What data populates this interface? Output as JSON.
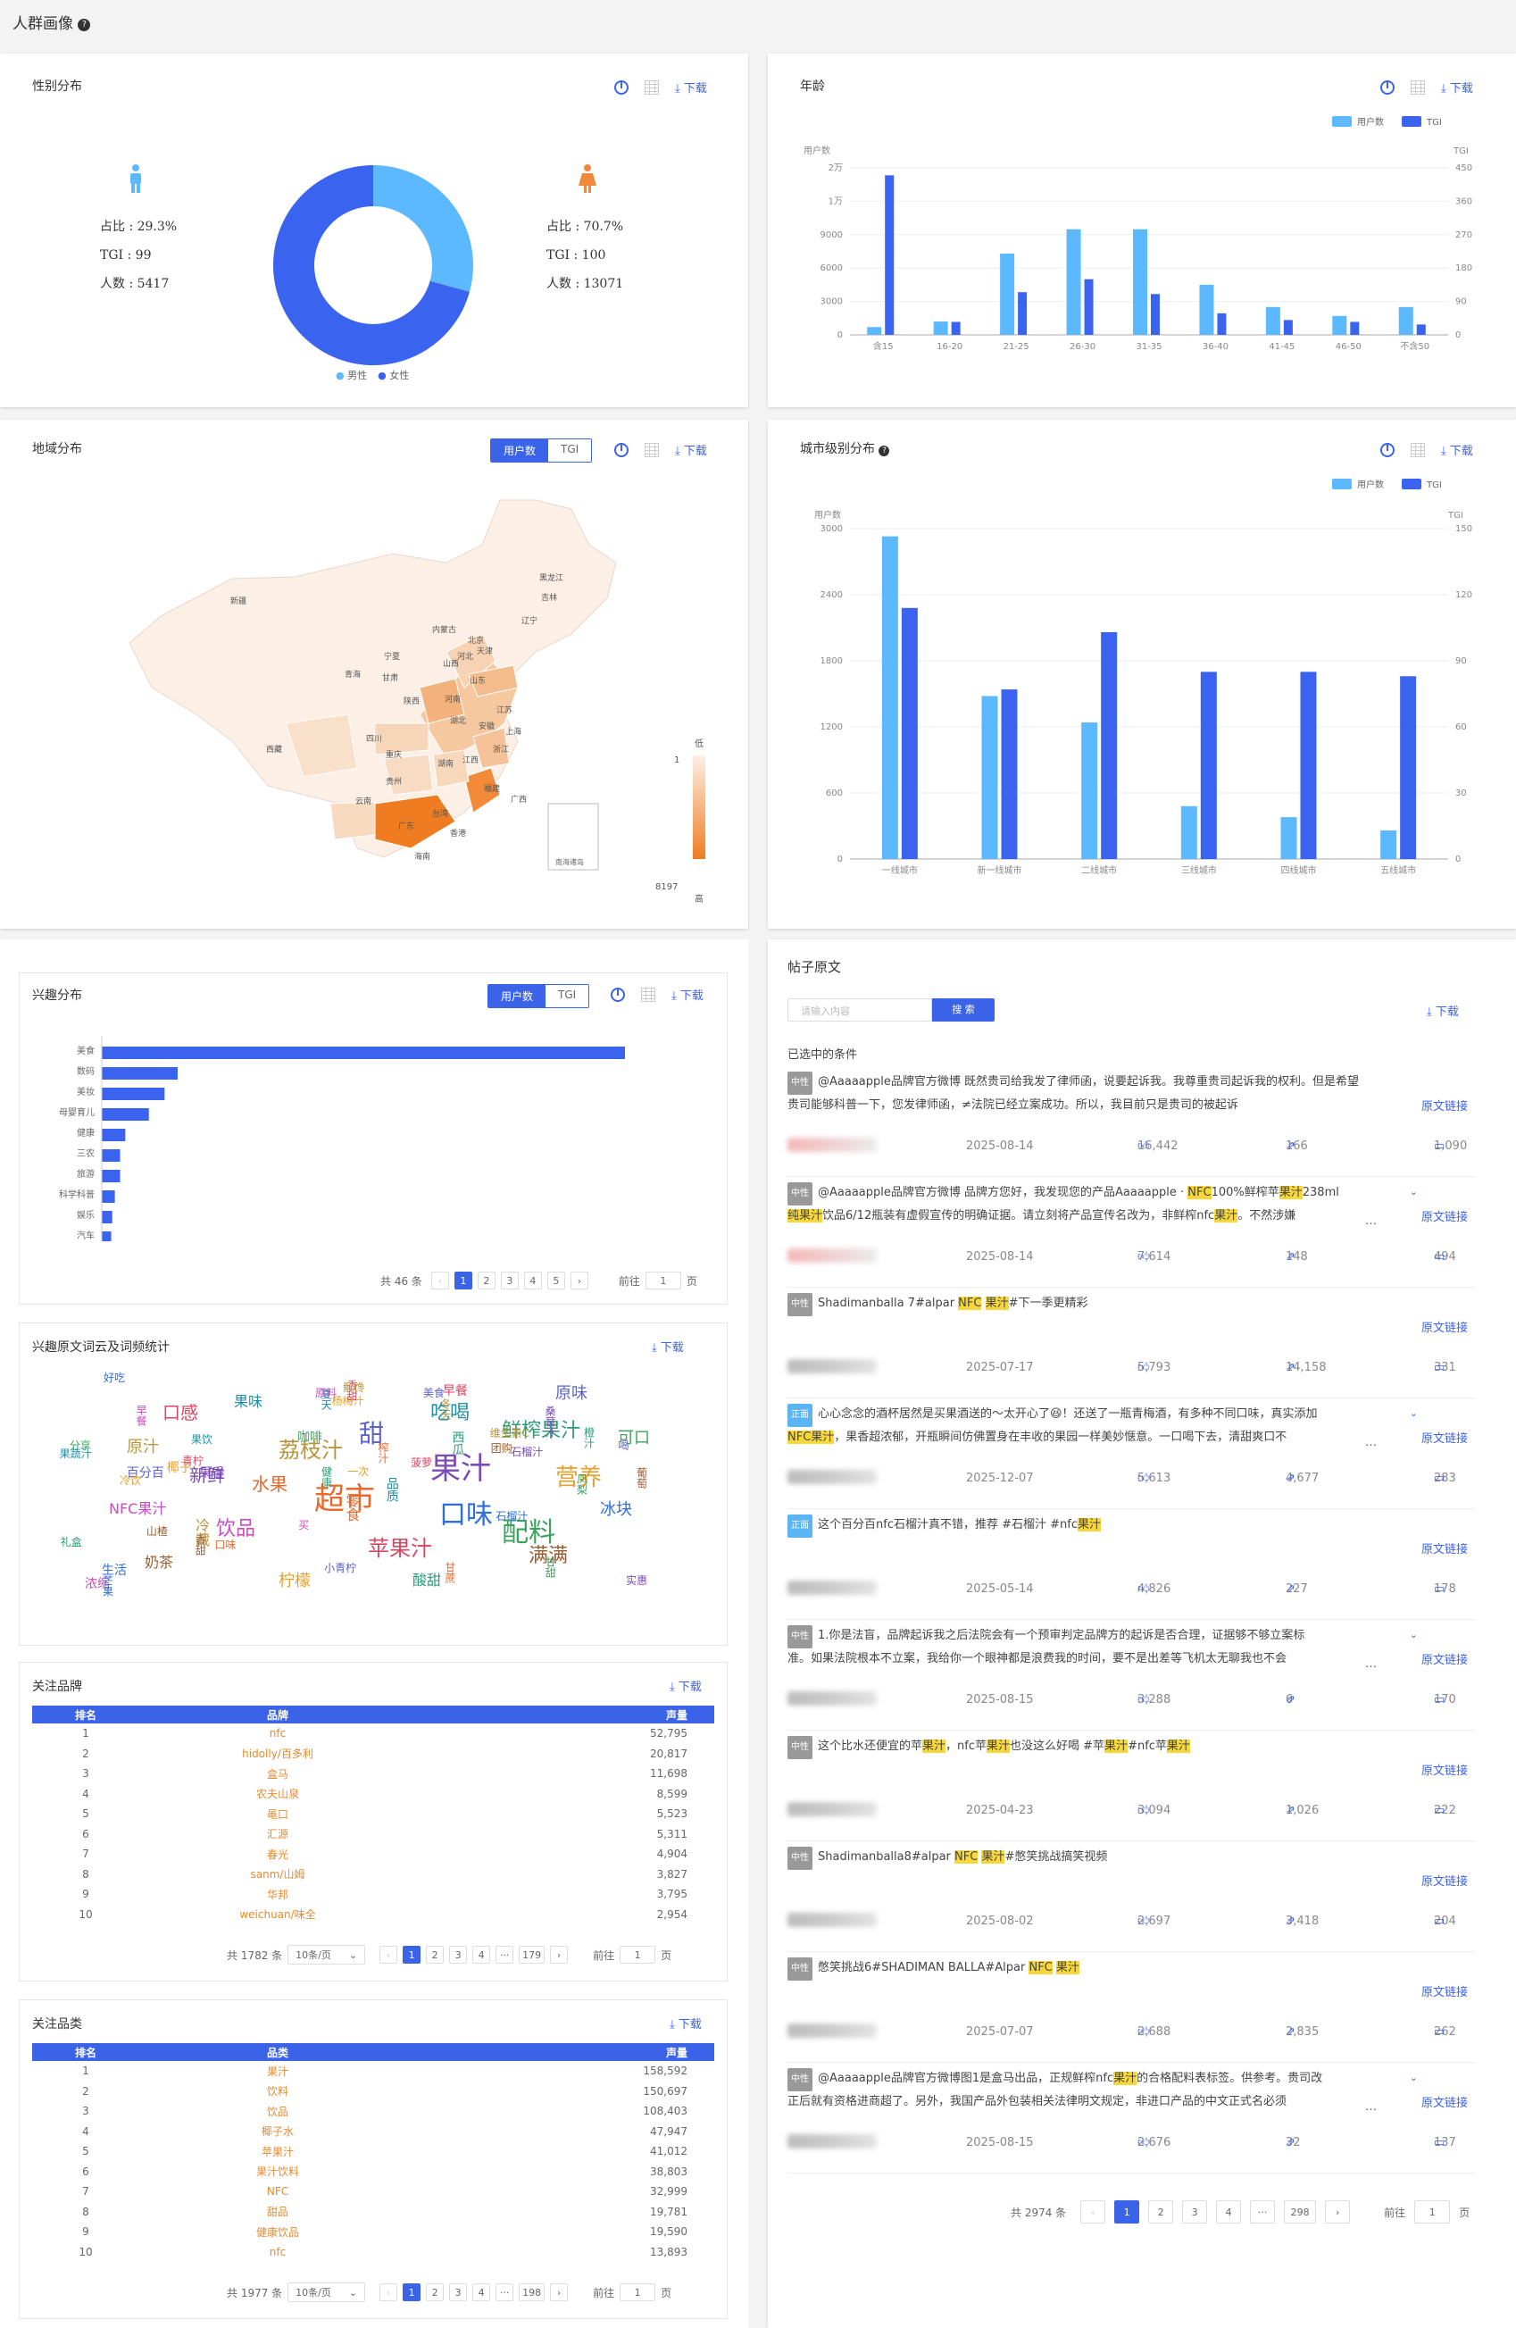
{
  "page": {
    "title": "人群画像",
    "help": "?"
  },
  "common": {
    "download": "下载",
    "tab_users": "用户数",
    "tab_tgi": "TGI",
    "legend_users": "用户数",
    "legend_tgi": "TGI"
  },
  "gender": {
    "title": "性别分布",
    "male": {
      "share": "占比 : 29.3%",
      "tgi": "TGI : 99",
      "count": "人数 : 5417"
    },
    "female": {
      "share": "占比 : 70.7%",
      "tgi": "TGI : 100",
      "count": "人数 : 13071"
    },
    "legend_male": "男性",
    "legend_female": "女性",
    "colors": {
      "male": "#5cb8ff",
      "female": "#3a64ef"
    }
  },
  "age": {
    "title": "年龄",
    "y_left_title": "用户数",
    "y_right_title": "TGI"
  },
  "region": {
    "title": "地域分布",
    "scale_low": "低",
    "scale_high": "高",
    "scale_min": "1",
    "scale_max": "8197",
    "south_sea": "南海诸岛",
    "provinces": [
      "新疆",
      "西藏",
      "青海",
      "甘肃",
      "宁夏",
      "内蒙古",
      "黑龙江",
      "吉林",
      "辽宁",
      "北京",
      "天津",
      "河北",
      "山西",
      "陕西",
      "山东",
      "河南",
      "江苏",
      "安徽",
      "上海",
      "湖北",
      "四川",
      "重庆",
      "浙江",
      "江西",
      "湖南",
      "贵州",
      "云南",
      "福建",
      "广西",
      "广东",
      "台湾",
      "海南",
      "香港"
    ]
  },
  "city": {
    "title": "城市级别分布",
    "y_left_title": "用户数",
    "y_right_title": "TGI"
  },
  "interest": {
    "title": "兴趣分布",
    "total": "共 46 条",
    "pages": [
      "1",
      "2",
      "3",
      "4",
      "5"
    ],
    "goto_label": "前往",
    "goto_value": "1",
    "page_unit": "页"
  },
  "wordcloud": {
    "title": "兴趣原文词云及词频统计",
    "words": [
      "超市",
      "果汁",
      "口味",
      "配料",
      "苹果汁",
      "荔枝汁",
      "吃喝",
      "饮品",
      "甜",
      "营养",
      "鲜榨果汁",
      "满满",
      "水果",
      "新鲜",
      "冰块",
      "可口",
      "口感",
      "原汁",
      "果味",
      "NFC果汁",
      "原味",
      "柠檬",
      "酸甜",
      "奶茶",
      "零食",
      "果香",
      "生活",
      "咖啡",
      "早餐",
      "冷藏",
      "品质",
      "浓缩",
      "百分百",
      "椰子",
      "西瓜",
      "葡萄",
      "榨汁",
      "石榴汁",
      "芒果",
      "凤梨",
      "菠萝",
      "冬天",
      "夏天",
      "买",
      "喝",
      "一次",
      "健康",
      "香甜",
      "口味",
      "实惠",
      "石榴汁",
      "分享",
      "青柠",
      "维生素C",
      "果蔬汁",
      "原料",
      "小青柠",
      "杨梅汁",
      "橙汁",
      "山楂",
      "甘蔗",
      "桑葚汁",
      "好吃",
      "甘甜",
      "香甜",
      "解馋",
      "果饮",
      "早餐",
      "美食",
      "冷饮",
      "礼盒",
      "团购"
    ]
  },
  "brands": {
    "title": "关注品牌",
    "headers": [
      "排名",
      "品牌",
      "声量"
    ],
    "rows": [
      [
        "1",
        "nfc",
        "52,795"
      ],
      [
        "2",
        "hidolly/百多利",
        "20,817"
      ],
      [
        "3",
        "盒马",
        "11,698"
      ],
      [
        "4",
        "农夫山泉",
        "8,599"
      ],
      [
        "5",
        "黾口",
        "5,523"
      ],
      [
        "6",
        "汇源",
        "5,311"
      ],
      [
        "7",
        "春光",
        "4,904"
      ],
      [
        "8",
        "sanm/山姆",
        "3,827"
      ],
      [
        "9",
        "华邦",
        "3,795"
      ],
      [
        "10",
        "weichuan/味全",
        "2,954"
      ]
    ],
    "total": "共 1782 条",
    "per_page": "10条/页",
    "pages": [
      "1",
      "2",
      "3",
      "4",
      "···",
      "179"
    ],
    "goto_label": "前往",
    "goto_value": "1",
    "page_unit": "页"
  },
  "categories": {
    "title": "关注品类",
    "headers": [
      "排名",
      "品类",
      "声量"
    ],
    "rows": [
      [
        "1",
        "果汁",
        "158,592"
      ],
      [
        "2",
        "饮料",
        "150,697"
      ],
      [
        "3",
        "饮品",
        "108,403"
      ],
      [
        "4",
        "椰子水",
        "47,947"
      ],
      [
        "5",
        "苹果汁",
        "41,012"
      ],
      [
        "6",
        "果汁饮料",
        "38,803"
      ],
      [
        "7",
        "NFC",
        "32,999"
      ],
      [
        "8",
        "甜品",
        "19,781"
      ],
      [
        "9",
        "健康饮品",
        "19,590"
      ],
      [
        "10",
        "nfc",
        "13,893"
      ]
    ],
    "total": "共 1977 条",
    "per_page": "10条/页",
    "pages": [
      "1",
      "2",
      "3",
      "4",
      "···",
      "198"
    ],
    "goto_label": "前往",
    "goto_value": "1",
    "page_unit": "页"
  },
  "posts": {
    "title": "帖子原文",
    "search_placeholder": "请输入内容",
    "search_button": "搜 索",
    "selected_label": "已选中的条件",
    "origin_label": "原文链接",
    "total": "共 2974 条",
    "pages": [
      "1",
      "2",
      "3",
      "4",
      "···",
      "298"
    ],
    "goto_label": "前往",
    "goto_value": "1",
    "page_unit": "页",
    "items": [
      {
        "tag": "中性",
        "text_html": "@Aaaaapple品牌官方微博 既然贵司给我发了律师函，说要起诉我。我尊重贵司起诉我的权利。但是希望贵司能够科普一下，您发律师函，≠法院已经立案成功。所以，我目前只是贵司的被起诉",
        "date": "2025-08-14",
        "likes": "16,442",
        "shares": "166",
        "comments": "1,090"
      },
      {
        "tag": "中性",
        "text_html": "@Aaaaapple品牌官方微博 品牌方您好，我发现您的产品Aaaaapple · <span class=\"hl\">NFC</span>100%鲜榨苹<span class=\"hl\">果汁</span>238ml<br><span class=\"hl\">纯果汁</span>饮品6/12瓶装有虚假宣传的明确证据。请立刻将产品宣传名改为，非鲜榨nfc<span class=\"hl\">果汁</span>。不然涉嫌",
        "date": "2025-08-14",
        "likes": "7,614",
        "shares": "148",
        "comments": "494"
      },
      {
        "tag": "中性",
        "text_html": "Shadimanballa 7#alpar <span class=\"hl\">NFC</span> <span class=\"hl\">果汁</span>#下一季更精彩",
        "date": "2025-07-17",
        "likes": "5,793",
        "shares": "14,158",
        "comments": "331"
      },
      {
        "tag": "正面",
        "text_html": "心心念念的酒杯居然是买果酒送的～太开心了😆！还送了一瓶青梅酒，有多种不同口味，真实添加<br><span class=\"hl\">NFC果汁</span>，果香超浓郁，开瓶瞬间仿佛置身在丰收的果园一样美妙惬意。一口喝下去，清甜爽口不",
        "date": "2025-12-07",
        "likes": "5,613",
        "shares": "4,677",
        "comments": "283"
      },
      {
        "tag": "正面",
        "text_html": "这个百分百nfc石榴汁真不错，推荐 #石榴汁 #nfc<span class=\"hl\">果汁</span>",
        "date": "2025-05-14",
        "likes": "4,826",
        "shares": "227",
        "comments": "178"
      },
      {
        "tag": "中性",
        "text_html": "1.你是法盲，品牌起诉我之后法院会有一个预审判定品牌方的起诉是否合理，证据够不够立案标<br>准。如果法院根本不立案，我给你一个眼神都是浪费我的时间，要不是出差等飞机太无聊我也不会",
        "date": "2025-08-15",
        "likes": "3,288",
        "shares": "6",
        "comments": "170"
      },
      {
        "tag": "中性",
        "text_html": "这个比水还便宜的苹<span class=\"hl\">果汁</span>，nfc苹<span class=\"hl\">果汁</span>也没这么好喝 #苹<span class=\"hl\">果汁</span>#nfc苹<span class=\"hl\">果汁</span>",
        "date": "2025-04-23",
        "likes": "3,094",
        "shares": "1,026",
        "comments": "222"
      },
      {
        "tag": "中性",
        "text_html": "Shadimanballa8#alpar <span class=\"hl\">NFC</span> <span class=\"hl\">果汁</span>#憋笑挑战搞笑视频",
        "date": "2025-08-02",
        "likes": "2,697",
        "shares": "3,418",
        "comments": "204"
      },
      {
        "tag": "中性",
        "text_html": "憋笑挑战6#SHADIMAN BALLA#Alpar <span class=\"hl\">NFC</span> <span class=\"hl\">果汁</span>",
        "date": "2025-07-07",
        "likes": "2,688",
        "shares": "2,835",
        "comments": "262"
      },
      {
        "tag": "中性",
        "text_html": "@Aaaaapple品牌官方微博图1是盒马出品，正规鲜榨nfc<span class=\"hl\">果汁</span>的合格配料表标签。供参考。贵司改<br>正后就有资格进商超了。另外，我国产品外包装相关法律明文规定，非进口产品的中文正式名必须",
        "date": "2025-08-15",
        "likes": "2,676",
        "shares": "32",
        "comments": "137"
      }
    ]
  },
  "chart_data": [
    {
      "type": "pie",
      "title": "性别分布",
      "categories": [
        "男性",
        "女性"
      ],
      "values": [
        29.3,
        70.7
      ]
    },
    {
      "type": "bar",
      "title": "年龄",
      "categories": [
        "含15",
        "16-20",
        "21-25",
        "26-30",
        "31-35",
        "36-40",
        "41-45",
        "46-50",
        "不含50"
      ],
      "series": [
        {
          "name": "用户数",
          "axis": "left",
          "color": "#5cb8ff",
          "values": [
            700,
            1200,
            7300,
            10300,
            10300,
            4500,
            2500,
            1700,
            2500
          ]
        },
        {
          "name": "TGI",
          "axis": "right",
          "color": "#3a64ef",
          "values": [
            430,
            35,
            115,
            150,
            110,
            58,
            40,
            35,
            28
          ]
        }
      ],
      "y_left": {
        "title": "用户数",
        "ticks": [
          "0",
          "3000",
          "6000",
          "9000",
          "1万",
          "2万"
        ],
        "max": 30000
      },
      "y_right": {
        "title": "TGI",
        "ticks": [
          "0",
          "90",
          "180",
          "270",
          "360",
          "450"
        ],
        "max": 450
      }
    },
    {
      "type": "bar",
      "title": "城市级别分布",
      "categories": [
        "一线城市",
        "新一线城市",
        "二线城市",
        "三线城市",
        "四线城市",
        "五线城市"
      ],
      "series": [
        {
          "name": "用户数",
          "axis": "left",
          "color": "#5cb8ff",
          "values": [
            2930,
            1480,
            1240,
            480,
            380,
            260
          ]
        },
        {
          "name": "TGI",
          "axis": "right",
          "color": "#3a64ef",
          "values": [
            114,
            77,
            103,
            85,
            85,
            83
          ]
        }
      ],
      "y_left": {
        "title": "用户数",
        "ticks": [
          "0",
          "600",
          "1200",
          "1800",
          "2400",
          "3000"
        ],
        "max": 3000
      },
      "y_right": {
        "title": "TGI",
        "ticks": [
          "0",
          "30",
          "60",
          "90",
          "120",
          "150"
        ],
        "max": 150
      }
    },
    {
      "type": "bar",
      "orientation": "horizontal",
      "title": "兴趣分布",
      "categories": [
        "美食",
        "数码",
        "美妆",
        "母婴育儿",
        "健康",
        "三农",
        "旅游",
        "科学科普",
        "娱乐",
        "汽车"
      ],
      "values": [
        100,
        14.5,
        12,
        9,
        4.5,
        3.5,
        3.5,
        2.5,
        2,
        1.8
      ]
    }
  ]
}
